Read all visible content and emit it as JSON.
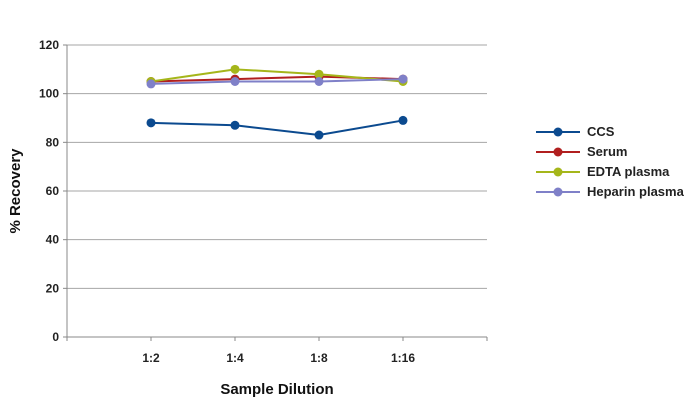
{
  "chart_data": {
    "type": "line",
    "title": "",
    "xlabel": "Sample Dilution",
    "ylabel": "% Recovery",
    "categories": [
      "1:2",
      "1:4",
      "1:8",
      "1:16"
    ],
    "ylim": [
      0,
      120
    ],
    "yticks": [
      0,
      20,
      40,
      60,
      80,
      100,
      120
    ],
    "grid": true,
    "legend_position": "right",
    "series": [
      {
        "name": "CCS",
        "color": "#0b4a8f",
        "values": [
          88,
          87,
          83,
          89
        ]
      },
      {
        "name": "Serum",
        "color": "#b11f1f",
        "values": [
          105,
          106,
          107,
          106
        ]
      },
      {
        "name": "EDTA plasma",
        "color": "#a5b61a",
        "values": [
          105,
          110,
          108,
          105
        ]
      },
      {
        "name": "Heparin plasma",
        "color": "#7f80c8",
        "values": [
          104,
          105,
          105,
          106
        ]
      }
    ]
  }
}
